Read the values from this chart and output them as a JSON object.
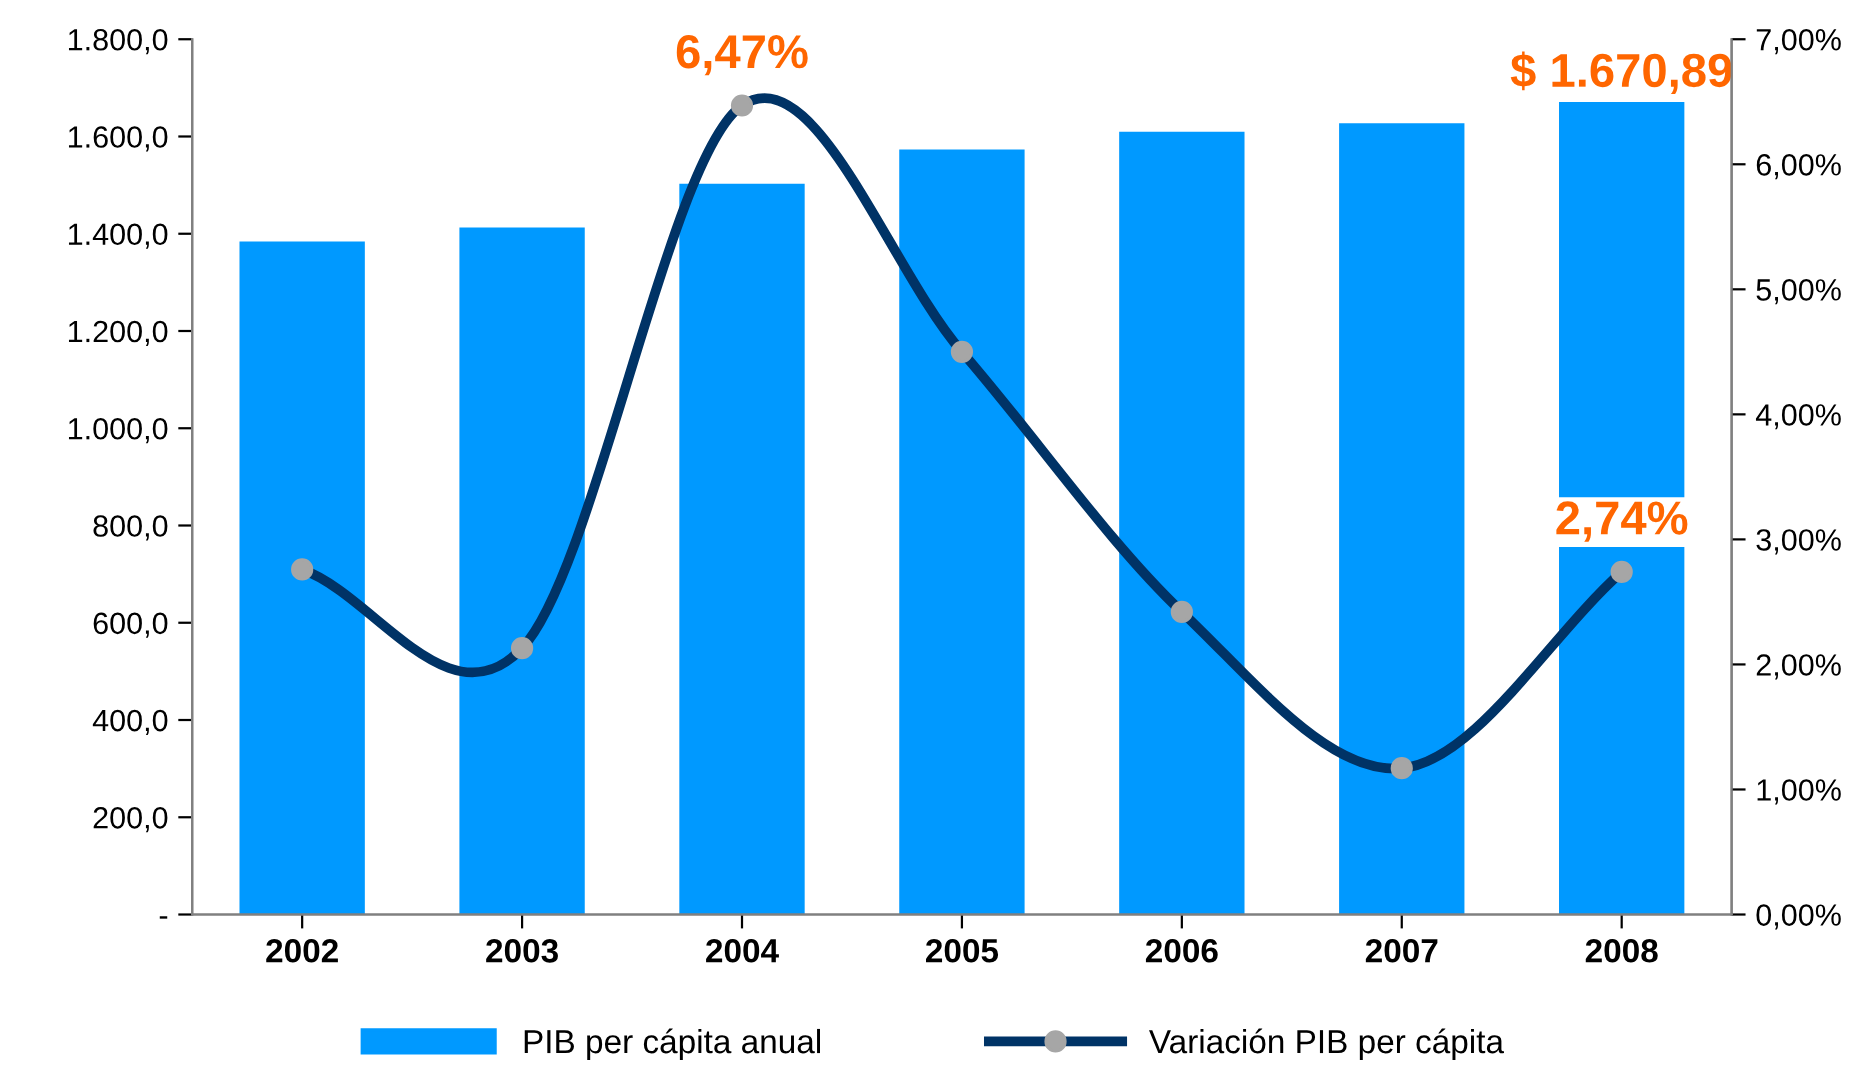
{
  "chart_data": {
    "type": "bar",
    "categories": [
      "2002",
      "2003",
      "2004",
      "2005",
      "2006",
      "2007",
      "2008"
    ],
    "series": [
      {
        "name": "PIB per cápita anual",
        "color": "#0099ff",
        "values": [
          1384,
          1413,
          1503,
          1573,
          1610,
          1627,
          1670.89
        ],
        "value_labels": [
          null,
          null,
          null,
          null,
          null,
          null,
          "$ 1.670,89"
        ]
      },
      {
        "name": "Variación PIB per cápita",
        "type": "line",
        "axis": "y2",
        "color": "#003366",
        "marker": "circle",
        "values": [
          2.76,
          2.13,
          6.47,
          4.5,
          2.42,
          1.17,
          2.74
        ],
        "value_labels": [
          null,
          null,
          "6,47%",
          null,
          null,
          null,
          "2,74%"
        ]
      }
    ],
    "ylim": [
      0,
      1800
    ],
    "yticks": [
      {
        "value": 0,
        "label": "-"
      },
      {
        "value": 200,
        "label": "200,0"
      },
      {
        "value": 400,
        "label": "400,0"
      },
      {
        "value": 600,
        "label": "600,0"
      },
      {
        "value": 800,
        "label": "800,0"
      },
      {
        "value": 1000,
        "label": "1.000,0"
      },
      {
        "value": 1200,
        "label": "1.200,0"
      },
      {
        "value": 1400,
        "label": "1.400,0"
      },
      {
        "value": 1600,
        "label": "1.600,0"
      },
      {
        "value": 1800,
        "label": "1.800,0"
      }
    ],
    "y2lim": [
      0,
      7
    ],
    "y2ticks": [
      {
        "value": 0,
        "label": "0,00%"
      },
      {
        "value": 1,
        "label": "1,00%"
      },
      {
        "value": 2,
        "label": "2,00%"
      },
      {
        "value": 3,
        "label": "3,00%"
      },
      {
        "value": 4,
        "label": "4,00%"
      },
      {
        "value": 5,
        "label": "5,00%"
      },
      {
        "value": 6,
        "label": "6,00%"
      },
      {
        "value": 7,
        "label": "7,00%"
      }
    ],
    "grid": false,
    "legend": "bottom"
  }
}
